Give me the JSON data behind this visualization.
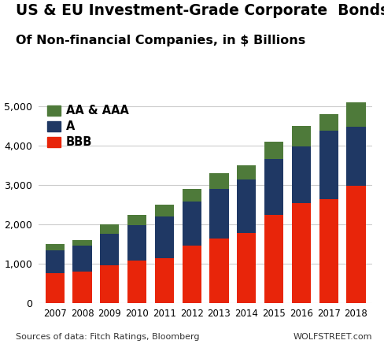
{
  "years": [
    2007,
    2008,
    2009,
    2010,
    2011,
    2012,
    2013,
    2014,
    2015,
    2016,
    2017,
    2018
  ],
  "BBB": [
    750,
    800,
    950,
    1075,
    1125,
    1450,
    1625,
    1775,
    2225,
    2525,
    2625,
    2975
  ],
  "A": [
    575,
    650,
    800,
    900,
    1075,
    1125,
    1275,
    1350,
    1425,
    1450,
    1750,
    1500
  ],
  "AA_AAA": [
    175,
    150,
    250,
    250,
    300,
    325,
    400,
    375,
    450,
    525,
    425,
    625
  ],
  "colors": {
    "BBB": "#e8250a",
    "A": "#1f3864",
    "AA_AAA": "#4e7a3a"
  },
  "title1": "US & EU Investment-Grade Corporate  Bonds",
  "title2": "Of Non-financial Companies, in $ Billions",
  "footer_left": "Sources of data: Fitch Ratings, Bloomberg",
  "footer_right": "WOLFSTREET.com",
  "ylim": [
    0,
    5250
  ],
  "yticks": [
    0,
    1000,
    2000,
    3000,
    4000,
    5000
  ],
  "legend_labels": [
    "AA & AAA",
    "A",
    "BBB"
  ],
  "background_color": "#ffffff",
  "title1_fontsize": 13.5,
  "title2_fontsize": 11.5
}
